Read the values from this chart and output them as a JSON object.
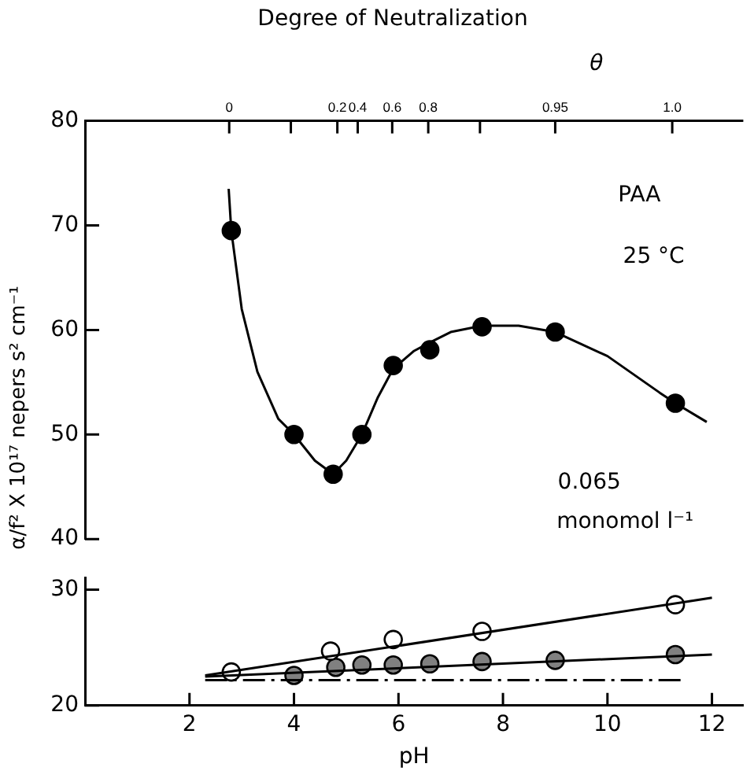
{
  "chart_data": [
    {
      "type": "scatter",
      "title": "Degree of Neutralization",
      "ylabel": "α/f² X 10¹⁷ nepers s² cm⁻¹",
      "xlim": [
        0,
        12.6
      ],
      "ylim": [
        40,
        80
      ],
      "yticks": [
        40,
        50,
        60,
        70,
        80
      ],
      "tick_labels": "y",
      "grid": false,
      "legend": false,
      "annotations": [
        "θ",
        "0",
        "0.2",
        "0.4",
        "0.6",
        "0.8",
        "0.95",
        "1.0",
        "PAA",
        "25 °C",
        "0.065",
        "monomol l⁻¹"
      ],
      "series": [
        {
          "type": "line",
          "color": "#000000",
          "marker": "none",
          "line_style": "solid",
          "x": [
            2.75,
            2.8,
            3.0,
            3.3,
            3.7,
            4.0,
            4.4,
            4.75,
            5.0,
            5.3,
            5.6,
            5.9,
            6.3,
            6.6,
            7.0,
            7.6,
            8.3,
            9.0,
            10.0,
            11.0,
            11.3,
            11.9
          ],
          "values": [
            73.5,
            69.5,
            62,
            56,
            51.5,
            50,
            47.5,
            46.2,
            47.5,
            50,
            53.5,
            56.3,
            58,
            58.8,
            59.8,
            60.4,
            60.4,
            59.8,
            57.5,
            54,
            53,
            51.2
          ]
        },
        {
          "color": "#000000",
          "marker": "circle",
          "x": [
            2.8,
            4.0,
            4.75,
            5.3,
            5.9,
            6.6,
            7.6,
            9.0,
            11.3
          ],
          "values": [
            69.5,
            50,
            46.2,
            50,
            56.6,
            58.1,
            60.3,
            59.8,
            53
          ]
        }
      ]
    },
    {
      "type": "scatter",
      "xlabel": "pH",
      "xlim": [
        0,
        12.6
      ],
      "xticks": [
        2,
        4,
        6,
        8,
        10,
        12
      ],
      "ylim": [
        20,
        31
      ],
      "yticks": [
        20,
        30
      ],
      "grid": false,
      "legend": false,
      "series": [
        {
          "type": "line",
          "color": "#000000",
          "marker": "none",
          "line_style": "solid",
          "x": [
            2.3,
            12
          ],
          "values": [
            22.6,
            29.3
          ]
        },
        {
          "type": "line",
          "color": "#000000",
          "marker": "none",
          "line_style": "solid",
          "x": [
            2.3,
            12
          ],
          "values": [
            22.5,
            24.4
          ]
        },
        {
          "type": "line",
          "color": "#000000",
          "marker": "none",
          "line_style": "dashed",
          "x": [
            2.3,
            11.4
          ],
          "values": [
            22.2,
            22.2
          ]
        },
        {
          "color": "#ffffff",
          "marker": "circle",
          "x": [
            2.8,
            4.7,
            5.9,
            7.6,
            11.3
          ],
          "values": [
            22.9,
            24.7,
            25.7,
            26.4,
            28.7
          ]
        },
        {
          "color": "#808080",
          "marker": "circle",
          "x": [
            4.0,
            4.8,
            5.3,
            5.9,
            6.6,
            7.6,
            9.0,
            11.3
          ],
          "values": [
            22.6,
            23.3,
            23.5,
            23.5,
            23.6,
            23.8,
            23.9,
            24.4
          ]
        }
      ]
    }
  ]
}
